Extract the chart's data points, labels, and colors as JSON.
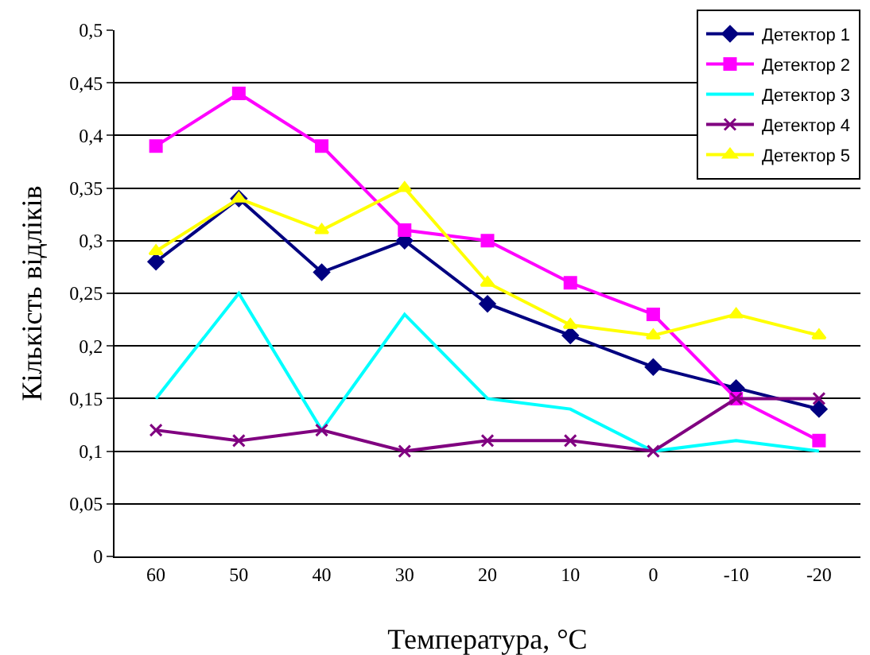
{
  "chart_data": {
    "type": "line",
    "xlabel": "Температура, °С",
    "ylabel": "Кількість відліків",
    "categories": [
      "60",
      "50",
      "40",
      "30",
      "20",
      "10",
      "0",
      "-10",
      "-20"
    ],
    "series": [
      {
        "name": "Детектор 1",
        "color": "#000080",
        "marker": "diamond",
        "values": [
          0.28,
          0.34,
          0.27,
          0.3,
          0.24,
          0.21,
          0.18,
          0.16,
          0.14
        ]
      },
      {
        "name": "Детектор 2",
        "color": "#ff00ff",
        "marker": "square",
        "values": [
          0.39,
          0.44,
          0.39,
          0.31,
          0.3,
          0.26,
          0.23,
          0.15,
          0.11
        ]
      },
      {
        "name": "Детектор 3",
        "color": "#00ffff",
        "marker": "none",
        "values": [
          0.15,
          0.25,
          0.12,
          0.23,
          0.15,
          0.14,
          0.1,
          0.11,
          0.1
        ]
      },
      {
        "name": "Детектор 4",
        "color": "#800080",
        "marker": "cross",
        "values": [
          0.12,
          0.11,
          0.12,
          0.1,
          0.11,
          0.11,
          0.1,
          0.15,
          0.15
        ]
      },
      {
        "name": "Детектор 5",
        "color": "#ffff00",
        "marker": "triangle",
        "values": [
          0.29,
          0.34,
          0.31,
          0.35,
          0.26,
          0.22,
          0.21,
          0.23,
          0.21
        ]
      }
    ],
    "ylim": [
      0,
      0.5
    ],
    "yticks": [
      0,
      {
        "value": 0.05,
        "label": "0,05"
      },
      {
        "value": 0.1,
        "label": "0,1"
      },
      {
        "value": 0.15,
        "label": "0,15"
      },
      {
        "value": 0.2,
        "label": "0,2"
      },
      {
        "value": 0.25,
        "label": "0,25"
      },
      {
        "value": 0.3,
        "label": "0,3"
      },
      {
        "value": 0.35,
        "label": "0,35"
      },
      {
        "value": 0.4,
        "label": "0,4"
      },
      {
        "value": 0.45,
        "label": "0,45"
      },
      {
        "value": 0.5,
        "label": "0,5"
      }
    ],
    "grid": "y",
    "legend": "top right",
    "line_style": "solid"
  }
}
